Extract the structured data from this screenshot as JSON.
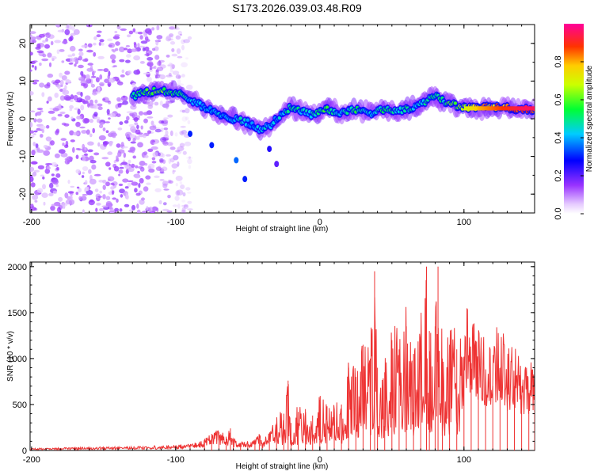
{
  "title": "S173.2026.039.03.48.R09",
  "chart_data": [
    {
      "type": "heatmap",
      "xlabel": "Height of straight line (km)",
      "ylabel": "Frequency (Hz)",
      "xlim": [
        -201,
        149
      ],
      "ylim": [
        -25,
        25
      ],
      "xticks": [
        -200,
        -100,
        0,
        100
      ],
      "yticks": [
        -20,
        -10,
        0,
        10,
        20
      ],
      "colorbar": {
        "label": "Normalized spectral amplitude",
        "range": [
          0,
          1
        ],
        "ticks": [
          0.0,
          0.2,
          0.4,
          0.6,
          0.8
        ]
      },
      "ridge": {
        "x": [
          -130,
          -120,
          -110,
          -100,
          -95,
          -90,
          -85,
          -80,
          -75,
          -70,
          -65,
          -60,
          -55,
          -50,
          -45,
          -40,
          -35,
          -30,
          -25,
          -20,
          -15,
          -10,
          -5,
          0,
          5,
          10,
          15,
          20,
          25,
          30,
          35,
          40,
          45,
          50,
          55,
          60,
          65,
          70,
          75,
          80,
          85,
          90,
          95,
          100,
          110,
          120,
          130,
          140,
          149
        ],
        "y": [
          6,
          7,
          7.5,
          7,
          6.5,
          5,
          4,
          3,
          2,
          1,
          0.5,
          0,
          -0.5,
          -1,
          -2,
          -3,
          -2,
          0,
          2,
          3,
          2.5,
          1.5,
          1,
          2,
          2.5,
          2,
          1.5,
          2,
          2.5,
          2,
          1.5,
          2,
          2.5,
          2,
          2,
          2.5,
          3,
          4,
          5,
          6,
          5,
          4,
          3.5,
          3,
          3,
          3,
          3,
          2.5,
          2.5
        ],
        "amplitude": [
          0.5,
          0.6,
          0.65,
          0.55,
          0.5,
          0.45,
          0.45,
          0.4,
          0.45,
          0.45,
          0.4,
          0.45,
          0.5,
          0.45,
          0.4,
          0.45,
          0.45,
          0.4,
          0.5,
          0.55,
          0.5,
          0.45,
          0.5,
          0.55,
          0.6,
          0.5,
          0.45,
          0.5,
          0.55,
          0.5,
          0.45,
          0.5,
          0.55,
          0.5,
          0.5,
          0.55,
          0.5,
          0.45,
          0.5,
          0.55,
          0.5,
          0.6,
          0.65,
          0.7,
          0.8,
          0.85,
          0.9,
          0.95,
          0.95
        ]
      }
    },
    {
      "type": "line",
      "xlabel": "Height of straight line (km)",
      "ylabel": "SNR (10 * v/v)",
      "xlim": [
        -201,
        149
      ],
      "ylim": [
        0,
        2050
      ],
      "xticks": [
        -200,
        -100,
        0,
        100
      ],
      "yticks": [
        0,
        500,
        1000,
        1500,
        2000
      ],
      "series": [
        {
          "name": "SNR",
          "color": "#ee3333",
          "x": [
            -201,
            -180,
            -160,
            -140,
            -120,
            -100,
            -90,
            -80,
            -75,
            -70,
            -65,
            -62,
            -60,
            -55,
            -50,
            -45,
            -42,
            -40,
            -35,
            -30,
            -25,
            -22,
            -20,
            -15,
            -10,
            -5,
            0,
            5,
            10,
            15,
            20,
            25,
            30,
            35,
            38,
            40,
            45,
            50,
            55,
            60,
            65,
            70,
            74,
            76,
            80,
            82,
            85,
            90,
            95,
            100,
            105,
            110,
            115,
            120,
            125,
            130,
            135,
            140,
            145,
            149
          ],
          "y": [
            20,
            25,
            30,
            35,
            40,
            50,
            60,
            100,
            180,
            200,
            150,
            240,
            120,
            80,
            90,
            100,
            160,
            80,
            180,
            300,
            400,
            760,
            300,
            420,
            450,
            380,
            550,
            480,
            420,
            500,
            900,
            800,
            1150,
            1000,
            1950,
            900,
            850,
            1200,
            1100,
            1350,
            1050,
            1200,
            2000,
            1300,
            1350,
            2000,
            1000,
            1150,
            1100,
            1000,
            950,
            800,
            750,
            700,
            900,
            650,
            700,
            600,
            580,
            560
          ]
        }
      ]
    }
  ]
}
